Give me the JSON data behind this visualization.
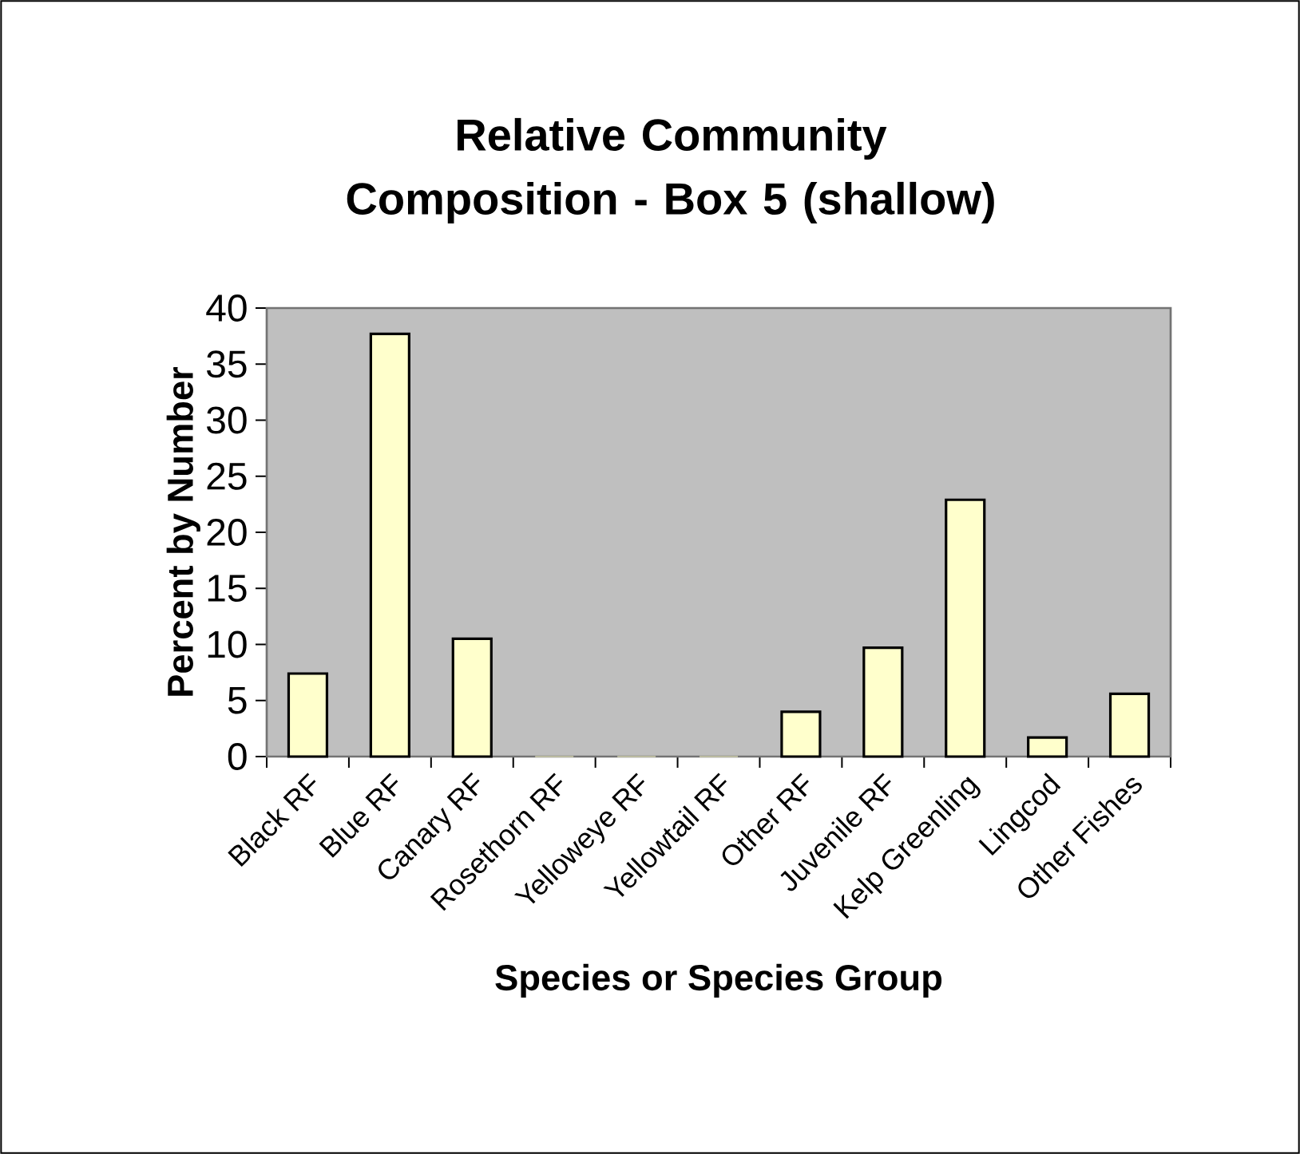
{
  "chart_data": {
    "type": "bar",
    "title": "Relative Community Composition - Box 5 (shallow)",
    "xlabel": "Species or Species Group",
    "ylabel": "Percent by Number",
    "categories": [
      "Black RF",
      "Blue RF",
      "Canary RF",
      "Rosethorn RF",
      "Yelloweye RF",
      "Yellowtail RF",
      "Other RF",
      "Juvenile RF",
      "Kelp Greenling",
      "Lingcod",
      "Other Fishes"
    ],
    "values": [
      7.4,
      37.7,
      10.5,
      0,
      0,
      0,
      4.0,
      9.7,
      22.9,
      1.7,
      5.6
    ],
    "color": "#ffffcc",
    "ylim": [
      0,
      40
    ],
    "yticks": [
      0,
      5,
      10,
      15,
      20,
      25,
      30,
      35,
      40
    ]
  }
}
